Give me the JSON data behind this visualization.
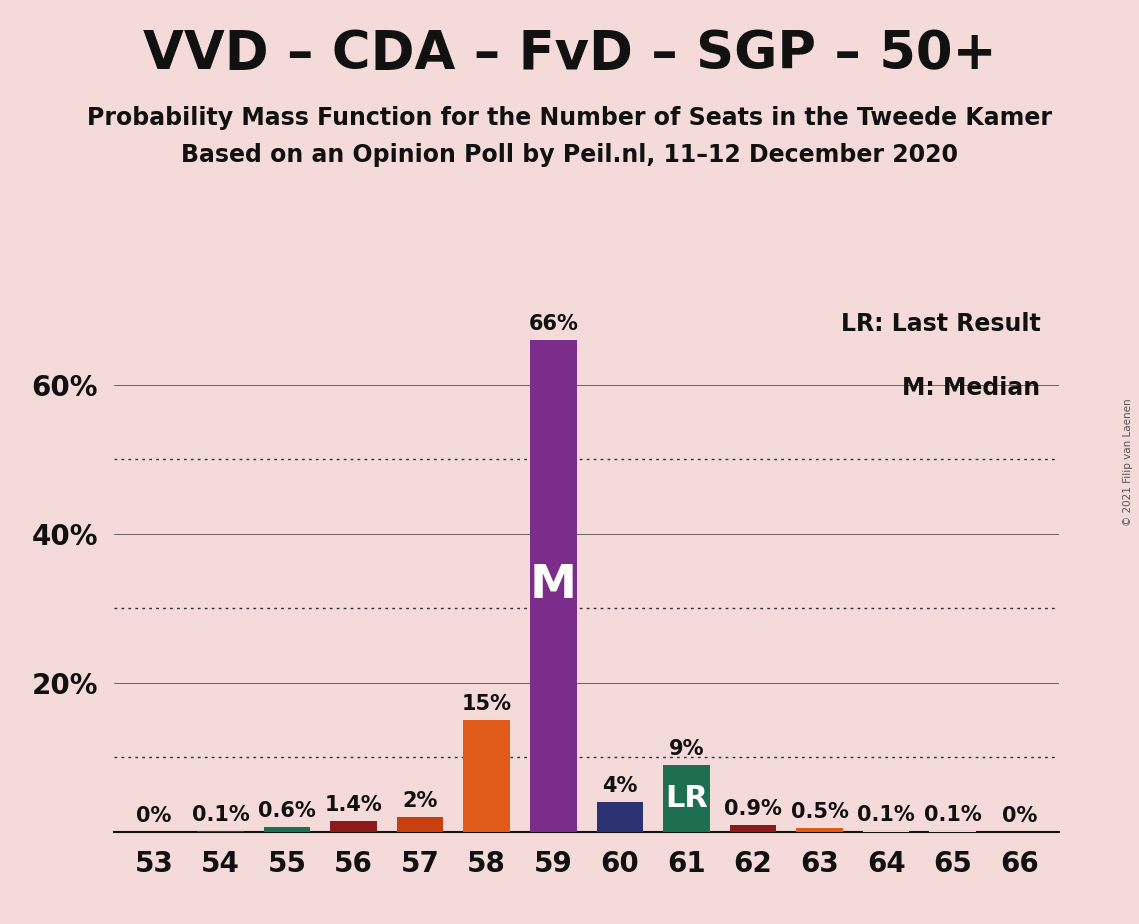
{
  "title": "VVD – CDA – FvD – SGP – 50+",
  "subtitle1": "Probability Mass Function for the Number of Seats in the Tweede Kamer",
  "subtitle2": "Based on an Opinion Poll by Peil.nl, 11–12 December 2020",
  "copyright": "© 2021 Filip van Laenen",
  "legend_lr": "LR: Last Result",
  "legend_m": "M: Median",
  "background_color": "#f5dada",
  "categories": [
    53,
    54,
    55,
    56,
    57,
    58,
    59,
    60,
    61,
    62,
    63,
    64,
    65,
    66
  ],
  "values": [
    0.0,
    0.1,
    0.6,
    1.4,
    2.0,
    15.0,
    66.0,
    4.0,
    9.0,
    0.9,
    0.5,
    0.1,
    0.1,
    0.0
  ],
  "bar_colors": [
    "#f5dada",
    "#2d3272",
    "#1e6e52",
    "#8b1a1a",
    "#c84010",
    "#e05a18",
    "#7b2d8b",
    "#2d3272",
    "#1e6e52",
    "#8b1a1a",
    "#e05a18",
    "#f5dada",
    "#f5dada",
    "#f5dada"
  ],
  "median_idx": 6,
  "lr_idx": 8,
  "labels": [
    "0%",
    "0.1%",
    "0.6%",
    "1.4%",
    "2%",
    "15%",
    "66%",
    "4%",
    "9%",
    "0.9%",
    "0.5%",
    "0.1%",
    "0.1%",
    "0%"
  ],
  "ylim": [
    0,
    72
  ],
  "ytick_positions": [
    20,
    40,
    60
  ],
  "ytick_labels": [
    "20%",
    "40%",
    "60%"
  ],
  "dotted_lines": [
    10,
    30,
    50
  ],
  "solid_lines": [
    20,
    40,
    60
  ],
  "title_fontsize": 38,
  "subtitle_fontsize": 17,
  "label_fontsize": 15,
  "tick_fontsize": 20,
  "bar_width": 0.7
}
